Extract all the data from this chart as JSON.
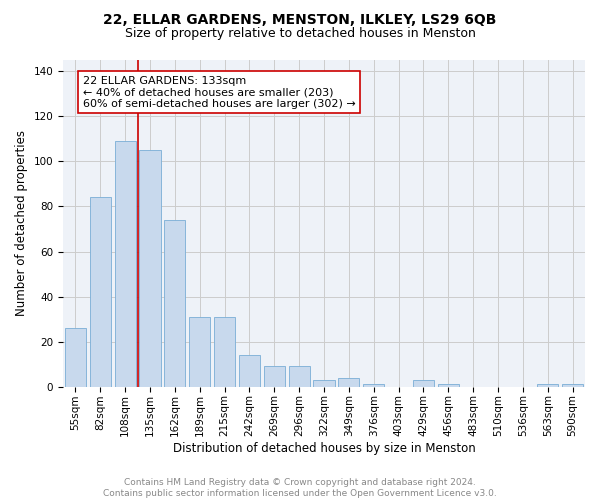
{
  "title": "22, ELLAR GARDENS, MENSTON, ILKLEY, LS29 6QB",
  "subtitle": "Size of property relative to detached houses in Menston",
  "xlabel": "Distribution of detached houses by size in Menston",
  "ylabel": "Number of detached properties",
  "categories": [
    "55sqm",
    "82sqm",
    "108sqm",
    "135sqm",
    "162sqm",
    "189sqm",
    "215sqm",
    "242sqm",
    "269sqm",
    "296sqm",
    "322sqm",
    "349sqm",
    "376sqm",
    "403sqm",
    "429sqm",
    "456sqm",
    "483sqm",
    "510sqm",
    "536sqm",
    "563sqm",
    "590sqm"
  ],
  "values": [
    26,
    84,
    109,
    105,
    74,
    31,
    31,
    14,
    9,
    9,
    3,
    4,
    1,
    0,
    3,
    1,
    0,
    0,
    0,
    1,
    1
  ],
  "bar_color": "#c8d9ed",
  "bar_edge_color": "#7aaed6",
  "vline_color": "#cc0000",
  "annotation_text": "22 ELLAR GARDENS: 133sqm\n← 40% of detached houses are smaller (203)\n60% of semi-detached houses are larger (302) →",
  "annotation_box_color": "#ffffff",
  "annotation_box_edge_color": "#cc0000",
  "ylim": [
    0,
    145
  ],
  "yticks": [
    0,
    20,
    40,
    60,
    80,
    100,
    120,
    140
  ],
  "grid_color": "#cccccc",
  "background_color": "#ffffff",
  "plot_bg_color": "#eef2f8",
  "footnote": "Contains HM Land Registry data © Crown copyright and database right 2024.\nContains public sector information licensed under the Open Government Licence v3.0.",
  "title_fontsize": 10,
  "subtitle_fontsize": 9,
  "xlabel_fontsize": 8.5,
  "ylabel_fontsize": 8.5,
  "tick_fontsize": 7.5,
  "annotation_fontsize": 8,
  "footnote_fontsize": 6.5
}
